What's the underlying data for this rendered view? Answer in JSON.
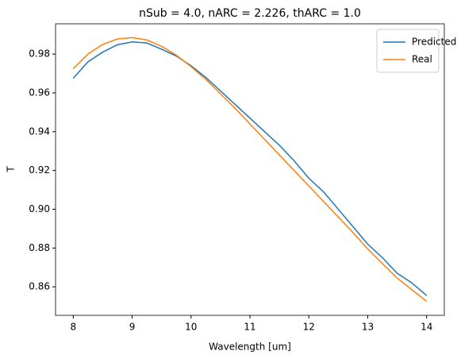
{
  "chart_data": {
    "type": "line",
    "title": "nSub = 4.0, nARC = 2.226, thARC = 1.0",
    "xlabel": "Wavelength [um]",
    "ylabel": "T",
    "x": [
      8,
      8.25,
      8.5,
      8.75,
      9,
      9.25,
      9.5,
      9.75,
      10,
      10.25,
      10.5,
      10.75,
      11,
      11.25,
      11.5,
      11.75,
      12,
      12.25,
      12.5,
      12.75,
      13,
      13.25,
      13.5,
      13.75,
      14
    ],
    "series": [
      {
        "name": "Predicted",
        "color": "#1f77b4",
        "values": [
          0.9675,
          0.976,
          0.981,
          0.9848,
          0.9863,
          0.9857,
          0.9825,
          0.979,
          0.974,
          0.968,
          0.961,
          0.954,
          0.947,
          0.94,
          0.933,
          0.925,
          0.916,
          0.909,
          0.9,
          0.891,
          0.882,
          0.875,
          0.867,
          0.862,
          0.8555
        ]
      },
      {
        "name": "Real",
        "color": "#ff7f0e",
        "values": [
          0.9725,
          0.98,
          0.985,
          0.9878,
          0.9885,
          0.9873,
          0.984,
          0.9795,
          0.9735,
          0.967,
          0.9595,
          0.952,
          0.944,
          0.936,
          0.928,
          0.92,
          0.912,
          0.904,
          0.896,
          0.888,
          0.8795,
          0.872,
          0.8645,
          0.8585,
          0.8525
        ]
      }
    ],
    "xlim": [
      7.7,
      14.3
    ],
    "xticks": [
      8,
      9,
      10,
      11,
      12,
      13,
      14
    ],
    "ylim": [
      0.8453,
      0.9956
    ],
    "yticks": [
      0.86,
      0.88,
      {
        "value": 0.9,
        "label": "0.90"
      },
      0.92,
      0.94,
      0.96,
      0.98
    ],
    "legend": "upper right",
    "grid": false
  }
}
